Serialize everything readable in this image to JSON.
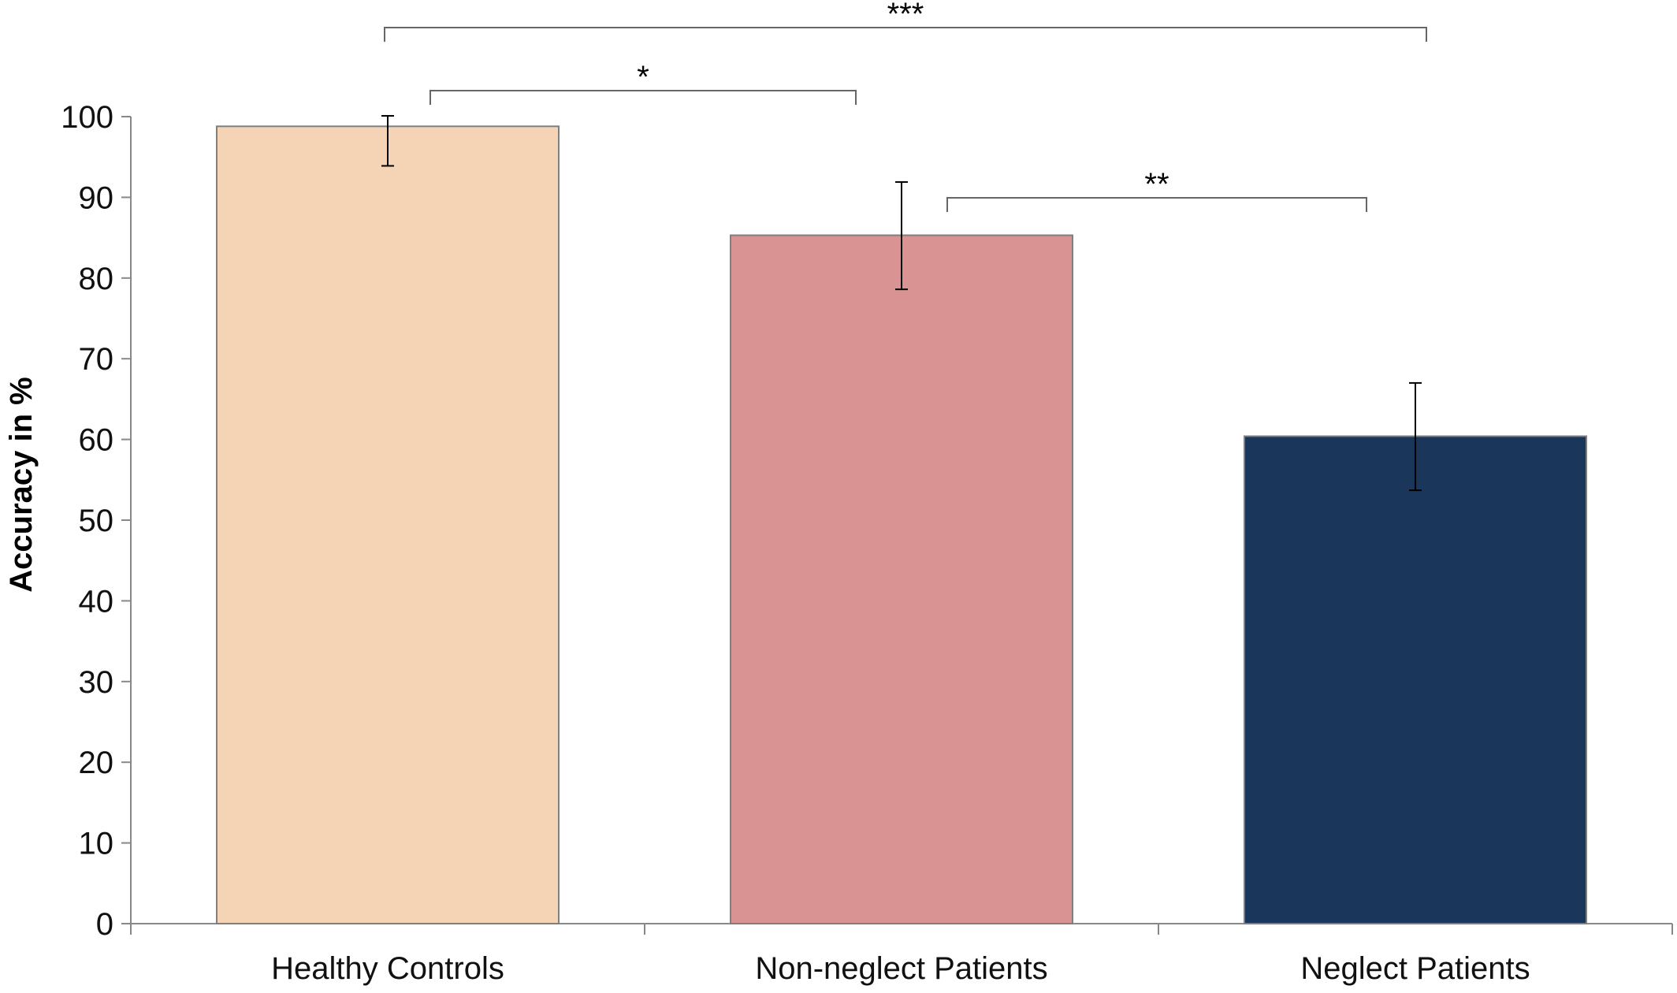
{
  "chart_data": {
    "type": "bar",
    "title": "",
    "xlabel": "",
    "ylabel": "Accuracy in %",
    "ylim": [
      0,
      100
    ],
    "yticks": [
      0,
      10,
      20,
      30,
      40,
      50,
      60,
      70,
      80,
      90,
      100
    ],
    "grid": false,
    "categories": [
      "Healthy Controls",
      "Non-neglect Patients",
      "Neglect Patients"
    ],
    "values": [
      98.8,
      85.3,
      60.4
    ],
    "error_low": [
      93.9,
      78.6,
      53.7
    ],
    "error_high": [
      100.1,
      91.9,
      67.0
    ],
    "colors": [
      "#f4d4b4",
      "#d99393",
      "#1a365b"
    ],
    "significance": [
      {
        "from": 0,
        "to": 2,
        "label": "***"
      },
      {
        "from": 0,
        "to": 1,
        "label": "*"
      },
      {
        "from": 1,
        "to": 2,
        "label": "**"
      }
    ]
  }
}
